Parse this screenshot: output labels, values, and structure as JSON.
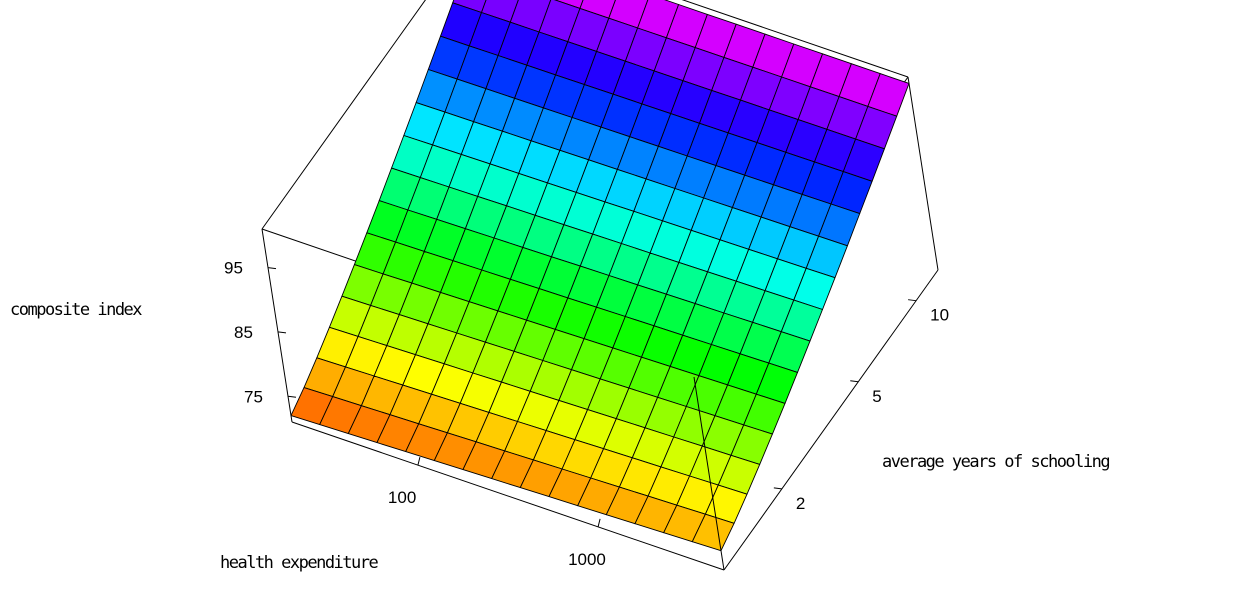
{
  "chart_data": {
    "type": "surface3d",
    "title": "",
    "xlabel": "health expenditure",
    "ylabel": "average years of schooling",
    "zlabel": "composite index",
    "x_scale": "log",
    "y_scale": "log",
    "x_ticks": [
      "100",
      "1000"
    ],
    "y_ticks": [
      "2",
      "5",
      "10"
    ],
    "z_ticks": [
      "75",
      "85",
      "95"
    ],
    "xlim": [
      20,
      5000
    ],
    "ylim": [
      1,
      13
    ],
    "zlim": [
      71,
      101
    ],
    "grid_n": 15,
    "colormap": "hue",
    "surface_rows": [
      {
        "years_of_schooling": 1.0,
        "index_at_low_expenditure": 72.0,
        "index_at_high_expenditure": 74.0
      },
      {
        "years_of_schooling": 13.0,
        "index_at_low_expenditure": 100.0,
        "index_at_high_expenditure": 100.0
      }
    ]
  }
}
